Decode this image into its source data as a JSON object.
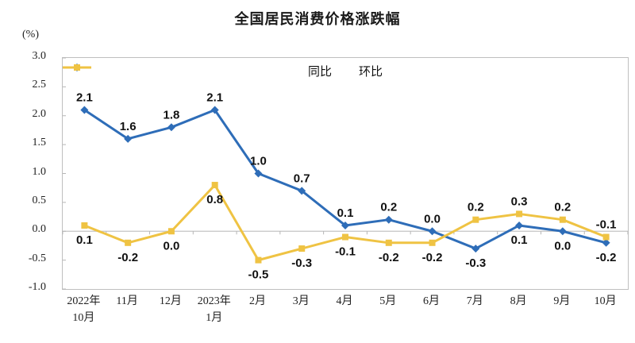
{
  "header": {
    "title": "全国居民消费价格涨跌幅",
    "unit_label": "(%)"
  },
  "chart_data": {
    "type": "line",
    "title": "全国居民消费价格涨跌幅",
    "ylabel": "(%)",
    "categories": [
      "2022年\n10月",
      "11月",
      "12月",
      "2023年\n1月",
      "2月",
      "3月",
      "4月",
      "5月",
      "6月",
      "7月",
      "8月",
      "9月",
      "10月"
    ],
    "series": [
      {
        "name": "同比",
        "color": "#2e6db8",
        "marker": "diamond",
        "values": [
          2.1,
          1.6,
          1.8,
          2.1,
          1.0,
          0.7,
          0.1,
          0.2,
          0.0,
          -0.3,
          0.1,
          0.0,
          -0.2
        ],
        "label_side": [
          "above",
          "above",
          "above",
          "above",
          "above",
          "above",
          "above",
          "above",
          "above",
          "below",
          "below",
          "below",
          "below"
        ]
      },
      {
        "name": "环比",
        "color": "#efc343",
        "marker": "square",
        "values": [
          0.1,
          -0.2,
          0.0,
          0.8,
          -0.5,
          -0.3,
          -0.1,
          -0.2,
          -0.2,
          0.2,
          0.3,
          0.2,
          -0.1
        ],
        "label_side": [
          "below",
          "below",
          "below",
          "below",
          "below",
          "below",
          "below",
          "below",
          "below",
          "above",
          "above",
          "above",
          "above"
        ]
      }
    ],
    "y_axis": {
      "min": -1.0,
      "max": 3.0,
      "step": 0.5,
      "ticks": [
        "3.0",
        "2.5",
        "2.0",
        "1.5",
        "1.0",
        "0.5",
        "0.0",
        "-0.5",
        "-1.0"
      ]
    },
    "grid": false,
    "zero_line": true,
    "legend_position": "top-center",
    "axis_color": "#bfbfbf",
    "zero_line_color": "#c5c5c5",
    "tick_color": "#b5b5b5",
    "label_color": "#111111"
  }
}
